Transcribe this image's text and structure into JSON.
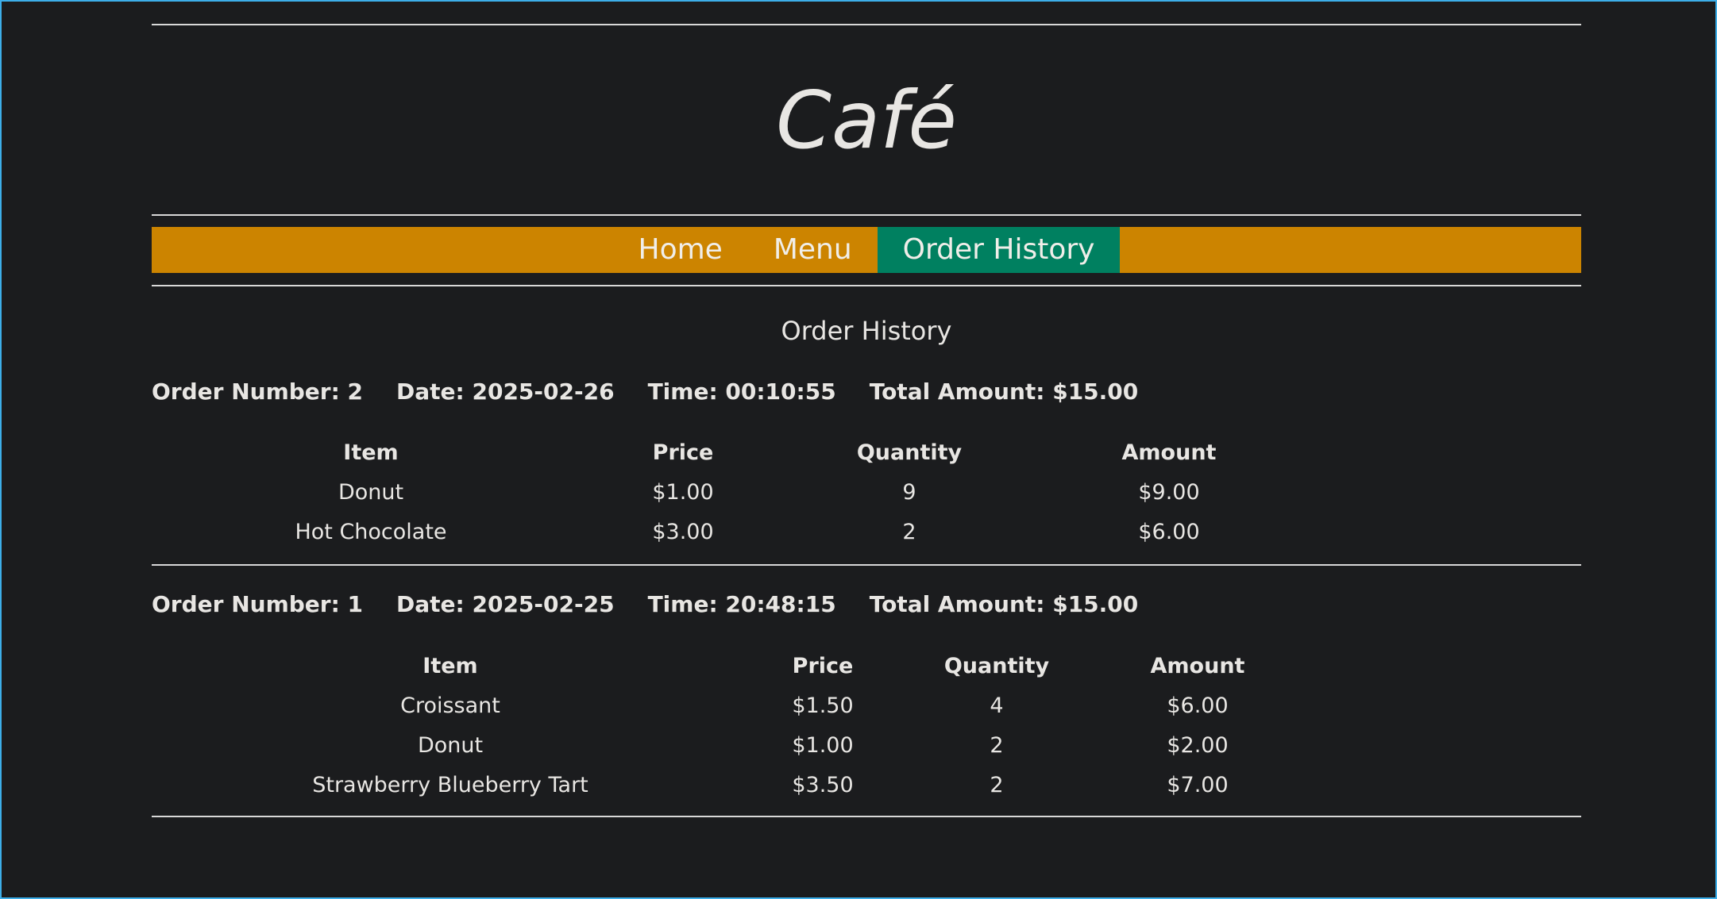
{
  "site": {
    "title": "Café"
  },
  "nav": {
    "items": [
      {
        "label": "Home"
      },
      {
        "label": "Menu"
      },
      {
        "label": "Order History",
        "active": true
      }
    ]
  },
  "colors": {
    "nav_bg": "#cc8400",
    "nav_active": "#008060",
    "background": "#1b1c1e",
    "text": "#e8e6e3"
  },
  "page": {
    "heading": "Order History"
  },
  "columns": [
    "Item",
    "Price",
    "Quantity",
    "Amount"
  ],
  "orders": [
    {
      "number": "Order Number: 2",
      "date": "Date: 2025-02-26",
      "time": "Time: 00:10:55",
      "total": "Total Amount: $15.00",
      "rows": [
        [
          "Donut",
          "$1.00",
          "9",
          "$9.00"
        ],
        [
          "Hot Chocolate",
          "$3.00",
          "2",
          "$6.00"
        ]
      ]
    },
    {
      "number": "Order Number: 1",
      "date": "Date: 2025-02-25",
      "time": "Time: 20:48:15",
      "total": "Total Amount: $15.00",
      "rows": [
        [
          "Croissant",
          "$1.50",
          "4",
          "$6.00"
        ],
        [
          "Donut",
          "$1.00",
          "2",
          "$2.00"
        ],
        [
          "Strawberry Blueberry Tart",
          "$3.50",
          "2",
          "$7.00"
        ]
      ]
    }
  ]
}
